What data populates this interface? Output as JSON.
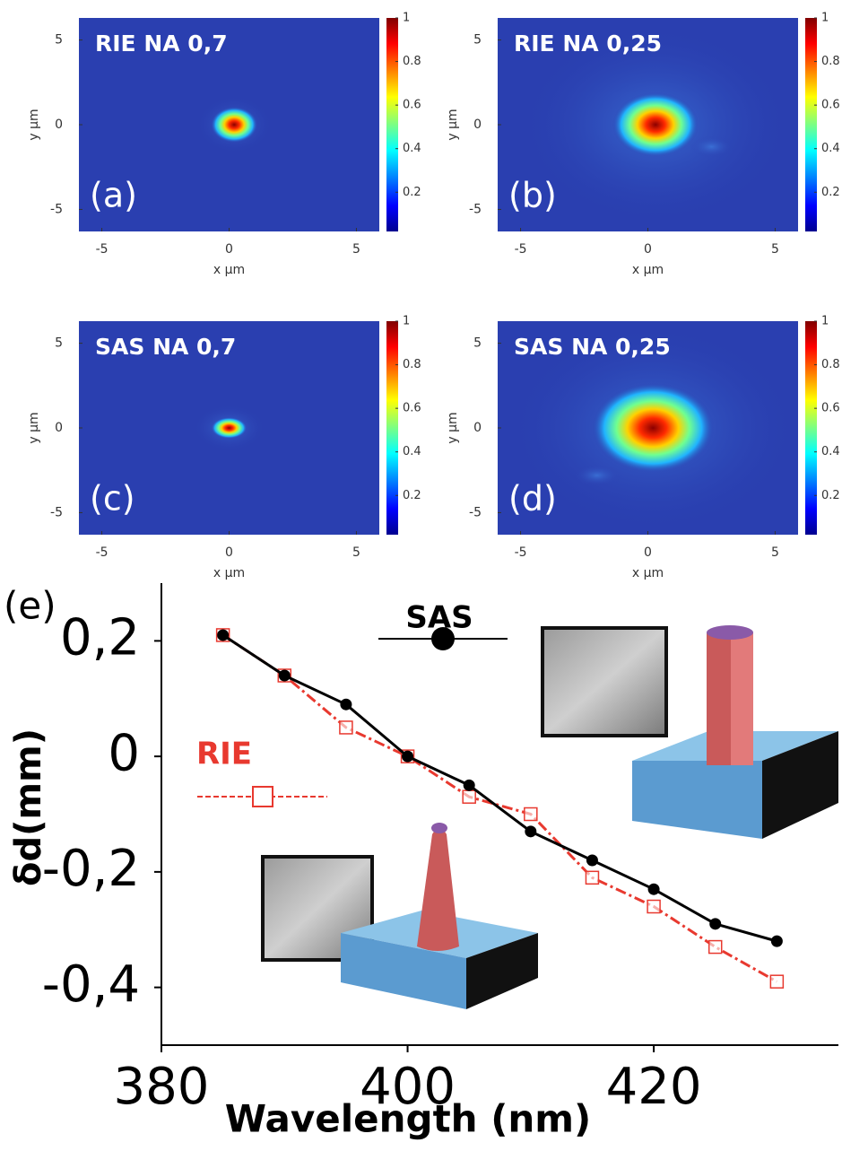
{
  "chart_data": [
    {
      "type": "heatmap",
      "title": "RIE NA 0,7",
      "panel": "(a)",
      "xlabel": "x μm",
      "ylabel": "y μm",
      "xlim": [
        -5.9,
        5.9
      ],
      "ylim": [
        -6.3,
        6.3
      ],
      "xticks": [
        -5,
        0,
        5
      ],
      "yticks": [
        -5,
        0,
        5
      ],
      "clim": [
        0.02,
        1
      ],
      "cticks": [
        0.2,
        0.4,
        0.6,
        0.8,
        1
      ]
    },
    {
      "type": "heatmap",
      "title": "RIE NA 0,25",
      "panel": "(b)",
      "xlabel": "x μm",
      "ylabel": "y μm",
      "xlim": [
        -5.9,
        5.9
      ],
      "ylim": [
        -6.3,
        6.3
      ],
      "xticks": [
        -5,
        0,
        5
      ],
      "yticks": [
        -5,
        0,
        5
      ],
      "clim": [
        0.02,
        1
      ],
      "cticks": [
        0.2,
        0.4,
        0.6,
        0.8,
        1
      ]
    },
    {
      "type": "heatmap",
      "title": "SAS NA 0,7",
      "panel": "(c)",
      "xlabel": "x μm",
      "ylabel": "y μm",
      "xlim": [
        -5.9,
        5.9
      ],
      "ylim": [
        -6.3,
        6.3
      ],
      "xticks": [
        -5,
        0,
        5
      ],
      "yticks": [
        -5,
        0,
        5
      ],
      "clim": [
        0.02,
        1
      ],
      "cticks": [
        0.2,
        0.4,
        0.6,
        0.8,
        1
      ]
    },
    {
      "type": "heatmap",
      "title": "SAS NA 0,25",
      "panel": "(d)",
      "xlabel": "x μm",
      "ylabel": "y μm",
      "xlim": [
        -5.9,
        5.9
      ],
      "ylim": [
        -6.3,
        6.3
      ],
      "xticks": [
        -5,
        0,
        5
      ],
      "yticks": [
        -5,
        0,
        5
      ],
      "clim": [
        0.02,
        1
      ],
      "cticks": [
        0.2,
        0.4,
        0.6,
        0.8,
        1
      ]
    },
    {
      "type": "line",
      "panel": "(e)",
      "xlabel": "Wavelength (nm)",
      "ylabel": "δd(mm)",
      "x": [
        385,
        390,
        395,
        400,
        405,
        410,
        415,
        420,
        425,
        430
      ],
      "series": [
        {
          "name": "SAS",
          "color": "#000000",
          "values": [
            0.21,
            0.14,
            0.09,
            0,
            -0.05,
            -0.13,
            -0.18,
            -0.23,
            -0.29,
            -0.32
          ]
        },
        {
          "name": "RIE",
          "color": "#e8392f",
          "values": [
            0.21,
            0.14,
            0.05,
            0,
            -0.07,
            -0.1,
            -0.21,
            -0.26,
            -0.33,
            -0.39
          ]
        }
      ],
      "xlim": [
        380,
        435
      ],
      "ylim": [
        -0.5,
        0.3
      ],
      "xticks": [
        380,
        400,
        420
      ],
      "yticks": [
        {
          "value": 0.2,
          "label": "0,2"
        },
        0,
        {
          "value": -0.2,
          "label": "-0,2"
        },
        {
          "value": -0.4,
          "label": "-0,4"
        }
      ]
    }
  ]
}
